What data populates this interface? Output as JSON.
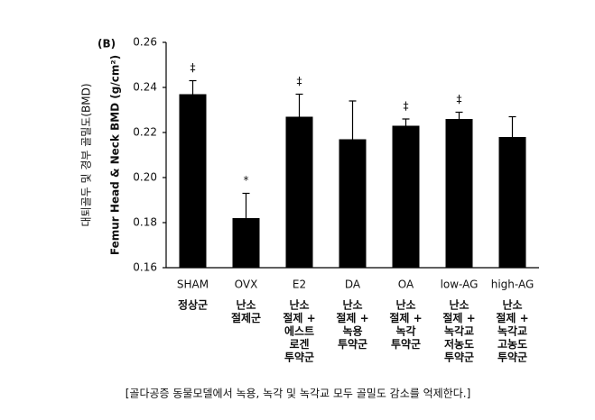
{
  "chart_data": {
    "type": "bar",
    "panel_label": "(B)",
    "y_label": "Femur Head & Neck BMD (g/cm²)",
    "y_label_secondary": "대퇴골두 및 경부 골밀도(BMD)",
    "categories": [
      "SHAM",
      "OVX",
      "E2",
      "DA",
      "OA",
      "low-AG",
      "high-AG"
    ],
    "category_sublabels": [
      [
        "정상군"
      ],
      [
        "난소",
        "절제군"
      ],
      [
        "난소",
        "절제 +",
        "에스트",
        "로겐",
        "투약군"
      ],
      [
        "난소",
        "절제 +",
        "녹용",
        "투약군"
      ],
      [
        "난소",
        "절제 +",
        "녹각",
        "투약군"
      ],
      [
        "난소",
        "절제 +",
        "녹각교",
        "저농도",
        "투약군"
      ],
      [
        "난소",
        "절제 +",
        "녹각교",
        "고농도",
        "투약군"
      ]
    ],
    "values": [
      0.237,
      0.182,
      0.227,
      0.217,
      0.223,
      0.226,
      0.218
    ],
    "errors": [
      0.006,
      0.011,
      0.01,
      0.017,
      0.003,
      0.003,
      0.009
    ],
    "annotations": [
      "‡",
      "*",
      "‡",
      null,
      "‡",
      "‡",
      null
    ],
    "color": "#000000",
    "ylim": [
      0.16,
      0.26
    ],
    "yticks": [
      0.16,
      0.18,
      {
        "value": 0.2,
        "label": "0.20"
      },
      0.22,
      0.24,
      0.26
    ],
    "grid": false,
    "caption": "[골다공증 동물모델에서 녹용, 녹각 및 녹각교 모두 골밀도 감소를 억제한다.]"
  }
}
